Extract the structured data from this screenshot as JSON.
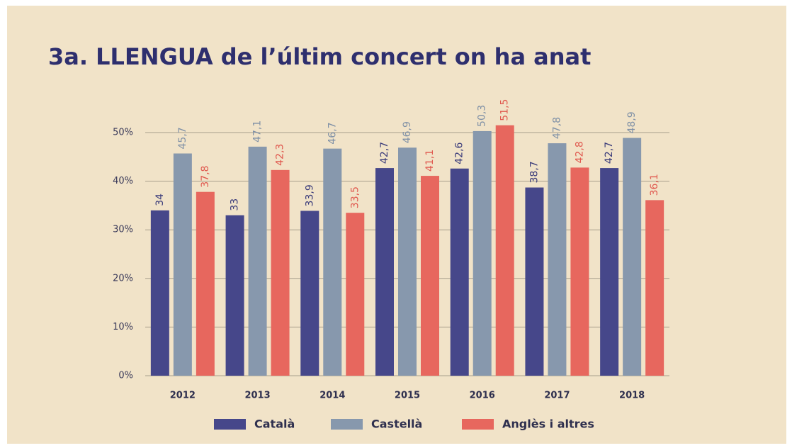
{
  "chart_data": {
    "type": "bar",
    "title": "3a. LLENGUA de l’últim concert on ha anat",
    "categories": [
      "2012",
      "2013",
      "2014",
      "2015",
      "2016",
      "2017",
      "2018"
    ],
    "series": [
      {
        "name": "Català",
        "color": "#46478a",
        "label_color": "#3a3b7a",
        "values": [
          34,
          33,
          33.9,
          42.7,
          42.6,
          38.7,
          42.7
        ],
        "value_labels": [
          "34",
          "33",
          "33,9",
          "42,7",
          "42,6",
          "38,7",
          "42,7"
        ]
      },
      {
        "name": "Castellà",
        "color": "#8798ad",
        "label_color": "#7f90a6",
        "values": [
          45.7,
          47.1,
          46.7,
          46.9,
          50.3,
          47.8,
          48.9
        ],
        "value_labels": [
          "45,7",
          "47,1",
          "46,7",
          "46,9",
          "50,3",
          "47,8",
          "48,9"
        ]
      },
      {
        "name": "Anglès i altres",
        "color": "#e7675e",
        "label_color": "#e0594f",
        "values": [
          37.8,
          42.3,
          33.5,
          41.1,
          51.5,
          42.8,
          36.1
        ],
        "value_labels": [
          "37,8",
          "42,3",
          "33,5",
          "41,1",
          "51,5",
          "42,8",
          "36,1"
        ]
      }
    ],
    "ylim": [
      0,
      55
    ],
    "yticks": [
      {
        "value": 0,
        "label": "0%"
      },
      {
        "value": 10,
        "label": "10%"
      },
      {
        "value": 20,
        "label": "20%"
      },
      {
        "value": 30,
        "label": "30%"
      },
      {
        "value": 40,
        "label": "40%"
      },
      {
        "value": 50,
        "label": "50%"
      }
    ],
    "grid": true,
    "legend": "bottom"
  }
}
